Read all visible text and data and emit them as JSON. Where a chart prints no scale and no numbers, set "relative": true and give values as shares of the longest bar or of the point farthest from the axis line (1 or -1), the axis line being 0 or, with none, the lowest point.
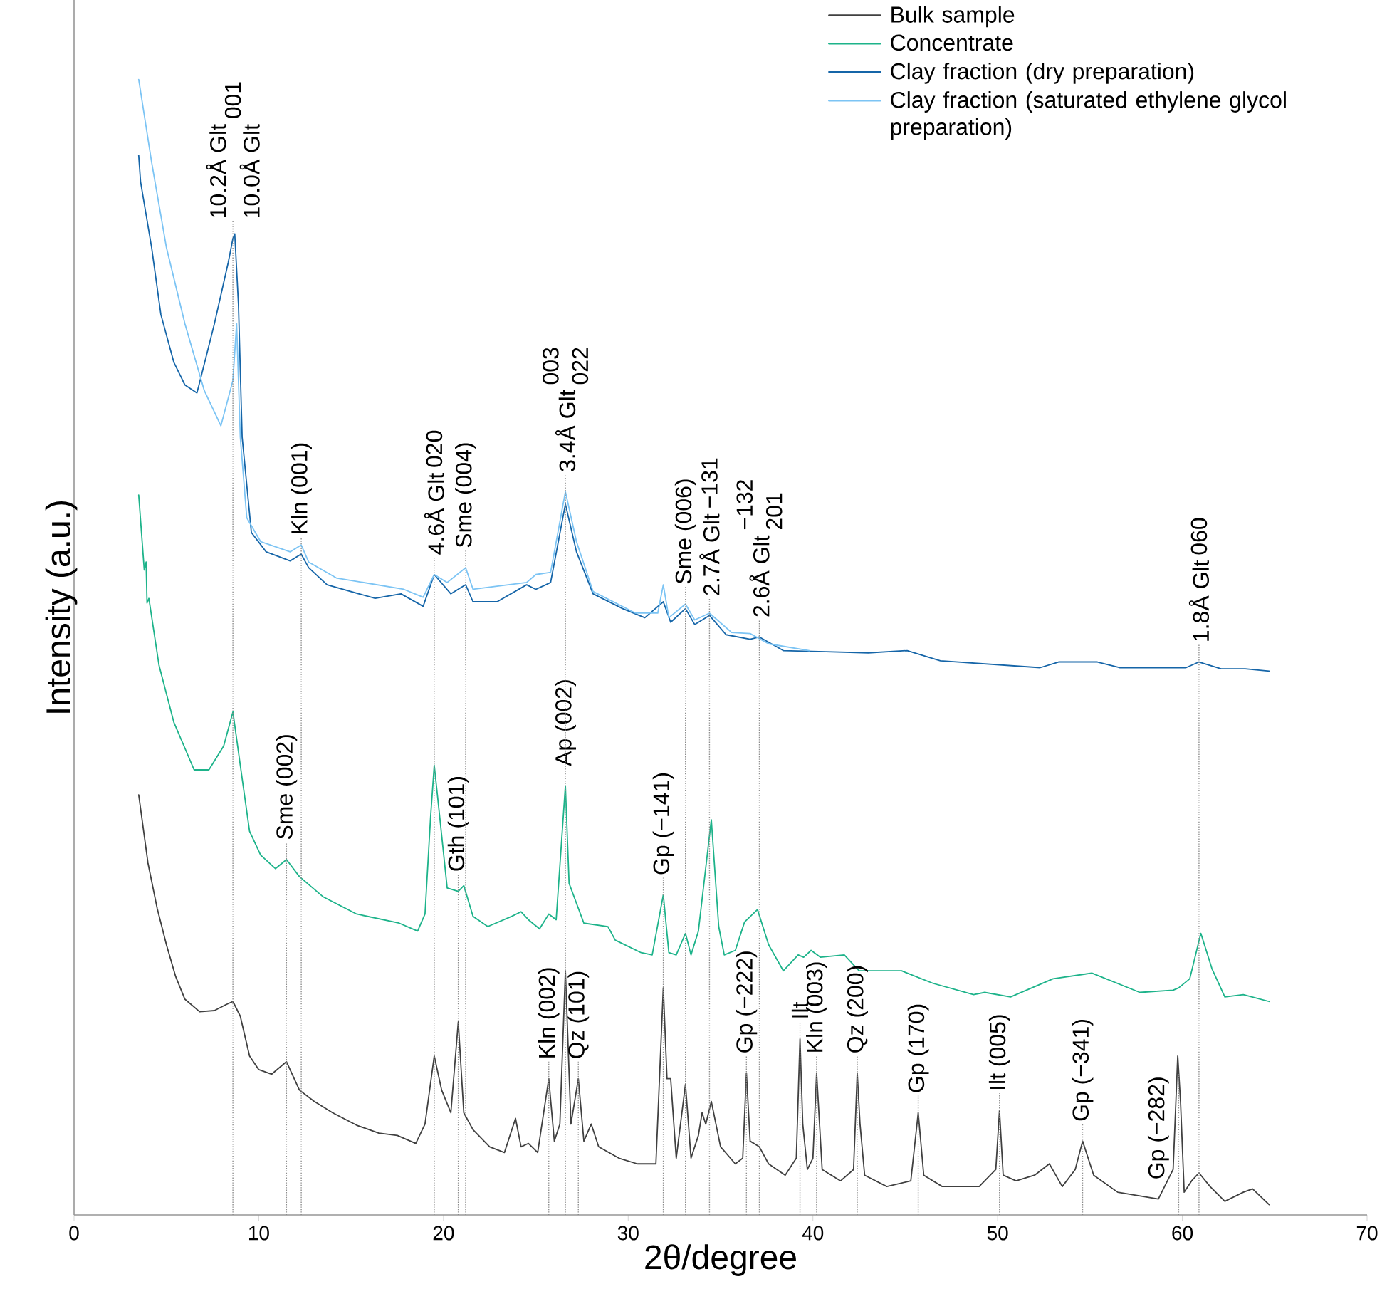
{
  "chart_data": {
    "type": "line",
    "relative": true,
    "xlabel": "2θ/degree",
    "ylabel": "Intensity (a.u.)",
    "xlim": [
      0,
      70
    ],
    "xticks": [
      0,
      10,
      20,
      30,
      40,
      50,
      60,
      70
    ],
    "legend": "top right",
    "series": [
      {
        "name": "Bulk sample",
        "color": "#404040",
        "x": [
          3.5,
          4.0,
          4.5,
          5.0,
          5.5,
          6.0,
          6.8,
          7.6,
          8.2,
          8.6,
          9.0,
          9.5,
          10.0,
          10.7,
          11.5,
          12.2,
          13.0,
          14.0,
          15.3,
          16.5,
          17.5,
          18.5,
          19.0,
          19.5,
          19.9,
          20.4,
          20.8,
          21.1,
          21.6,
          22.5,
          23.3,
          23.9,
          24.2,
          24.6,
          25.1,
          25.7,
          26.0,
          26.3,
          26.6,
          26.9,
          27.3,
          27.6,
          28.0,
          28.4,
          29.5,
          30.5,
          31.5,
          31.9,
          32.1,
          32.3,
          32.6,
          33.1,
          33.4,
          33.8,
          34.0,
          34.2,
          34.5,
          35.0,
          35.8,
          36.2,
          36.4,
          36.6,
          37.1,
          37.6,
          38.5,
          39.1,
          39.3,
          39.45,
          39.7,
          40.0,
          40.2,
          40.5,
          41.5,
          42.2,
          42.4,
          42.55,
          42.8,
          44.0,
          45.3,
          45.7,
          46.0,
          47.0,
          49.0,
          49.9,
          50.1,
          50.3,
          51.0,
          52.0,
          52.8,
          53.5,
          54.2,
          54.6,
          55.2,
          56.5,
          58.7,
          59.5,
          59.75,
          59.9,
          60.1,
          60.5,
          60.9,
          61.5,
          62.3,
          63.3,
          63.8,
          64.7
        ],
        "values": [
          0.37,
          0.31,
          0.27,
          0.238,
          0.21,
          0.19,
          0.179,
          0.18,
          0.185,
          0.188,
          0.175,
          0.14,
          0.128,
          0.124,
          0.135,
          0.11,
          0.1,
          0.09,
          0.079,
          0.072,
          0.07,
          0.063,
          0.08,
          0.14,
          0.11,
          0.09,
          0.17,
          0.09,
          0.075,
          0.06,
          0.055,
          0.085,
          0.06,
          0.063,
          0.055,
          0.12,
          0.065,
          0.08,
          0.215,
          0.08,
          0.12,
          0.065,
          0.08,
          0.06,
          0.05,
          0.045,
          0.045,
          0.2,
          0.12,
          0.12,
          0.05,
          0.115,
          0.05,
          0.07,
          0.09,
          0.08,
          0.1,
          0.06,
          0.045,
          0.05,
          0.125,
          0.065,
          0.06,
          0.045,
          0.035,
          0.05,
          0.155,
          0.08,
          0.04,
          0.05,
          0.125,
          0.04,
          0.03,
          0.04,
          0.125,
          0.08,
          0.035,
          0.025,
          0.03,
          0.09,
          0.035,
          0.025,
          0.025,
          0.04,
          0.092,
          0.035,
          0.03,
          0.035,
          0.045,
          0.025,
          0.04,
          0.065,
          0.035,
          0.02,
          0.014,
          0.04,
          0.14,
          0.1,
          0.02,
          0.03,
          0.037,
          0.025,
          0.012,
          0.02,
          0.023,
          0.009
        ]
      },
      {
        "name": "Concentrate",
        "color": "#1db38a",
        "x": [
          3.5,
          3.8,
          3.9,
          3.95,
          4.05,
          4.6,
          5.4,
          6.5,
          7.3,
          8.1,
          8.6,
          9.0,
          9.5,
          10.1,
          10.9,
          11.5,
          12.2,
          13.5,
          15.3,
          17.6,
          18.6,
          19.0,
          19.3,
          19.5,
          19.8,
          20.2,
          20.8,
          21.1,
          21.6,
          22.4,
          23.7,
          24.2,
          24.6,
          25.2,
          25.7,
          26.1,
          26.6,
          26.8,
          27.6,
          28.9,
          29.3,
          30.7,
          31.3,
          31.9,
          32.2,
          32.6,
          33.1,
          33.4,
          33.8,
          34.5,
          34.9,
          35.2,
          35.8,
          36.3,
          37.0,
          37.6,
          38.4,
          39.2,
          39.5,
          39.9,
          40.4,
          41.7,
          42.5,
          44.8,
          46.5,
          48.7,
          49.3,
          50.7,
          53.0,
          55.1,
          57.7,
          59.5,
          59.8,
          60.4,
          61.0,
          61.6,
          62.3,
          63.3,
          64.7
        ],
        "values": [
          0.634,
          0.568,
          0.575,
          0.539,
          0.543,
          0.484,
          0.434,
          0.392,
          0.392,
          0.413,
          0.443,
          0.396,
          0.338,
          0.317,
          0.305,
          0.313,
          0.298,
          0.28,
          0.265,
          0.257,
          0.25,
          0.265,
          0.35,
          0.396,
          0.35,
          0.288,
          0.285,
          0.29,
          0.263,
          0.254,
          0.263,
          0.267,
          0.26,
          0.252,
          0.265,
          0.26,
          0.378,
          0.292,
          0.257,
          0.254,
          0.242,
          0.231,
          0.229,
          0.282,
          0.231,
          0.229,
          0.248,
          0.229,
          0.25,
          0.348,
          0.254,
          0.229,
          0.233,
          0.258,
          0.269,
          0.238,
          0.215,
          0.229,
          0.227,
          0.233,
          0.227,
          0.229,
          0.215,
          0.215,
          0.204,
          0.194,
          0.196,
          0.192,
          0.208,
          0.213,
          0.196,
          0.198,
          0.2,
          0.208,
          0.248,
          0.217,
          0.192,
          0.194,
          0.188
        ]
      },
      {
        "name": "Clay fraction (dry preparation)",
        "color": "#1565a8",
        "x": [
          3.5,
          3.6,
          4.2,
          4.7,
          5.4,
          6.0,
          6.65,
          6.75,
          7.6,
          8.35,
          8.6,
          8.7,
          8.9,
          9.1,
          9.6,
          10.4,
          11.7,
          12.3,
          12.7,
          13.7,
          16.3,
          17.7,
          18.9,
          19.5,
          20.4,
          21.2,
          21.6,
          22.9,
          24.5,
          25.0,
          25.8,
          26.6,
          27.2,
          28.1,
          29.7,
          30.9,
          31.9,
          32.3,
          33.1,
          33.6,
          34.4,
          35.3,
          36.6,
          37.1,
          38.4,
          40.7,
          43.0,
          45.1,
          46.9,
          52.3,
          53.3,
          55.4,
          56.6,
          60.2,
          60.9,
          62.1,
          63.4,
          64.7
        ],
        "values": [
          0.933,
          0.91,
          0.852,
          0.793,
          0.751,
          0.731,
          0.724,
          0.73,
          0.785,
          0.839,
          0.86,
          0.864,
          0.802,
          0.685,
          0.601,
          0.584,
          0.576,
          0.582,
          0.57,
          0.555,
          0.543,
          0.547,
          0.536,
          0.564,
          0.547,
          0.555,
          0.54,
          0.54,
          0.555,
          0.551,
          0.557,
          0.626,
          0.584,
          0.547,
          0.534,
          0.526,
          0.54,
          0.522,
          0.534,
          0.52,
          0.528,
          0.511,
          0.507,
          0.509,
          0.497,
          0.496,
          0.495,
          0.497,
          0.488,
          0.482,
          0.487,
          0.487,
          0.482,
          0.482,
          0.487,
          0.481,
          0.481,
          0.479
        ]
      },
      {
        "name": "Clay fraction (saturated ethylene glycol preparation)",
        "color": "#7cc4f4",
        "x": [
          3.5,
          4.2,
          5.0,
          6.0,
          7.05,
          7.95,
          8.6,
          8.8,
          9.0,
          9.35,
          10.1,
          11.7,
          12.3,
          12.7,
          14.2,
          17.85,
          18.9,
          19.5,
          20.2,
          21.2,
          21.6,
          24.5,
          25.0,
          25.8,
          26.6,
          27.2,
          28.1,
          30.4,
          31.6,
          31.9,
          32.2,
          33.1,
          33.6,
          34.4,
          35.6,
          36.6,
          37.6,
          39.8
        ],
        "values": [
          1.0,
          0.927,
          0.852,
          0.785,
          0.726,
          0.695,
          0.735,
          0.785,
          0.685,
          0.614,
          0.593,
          0.584,
          0.59,
          0.575,
          0.561,
          0.551,
          0.544,
          0.564,
          0.557,
          0.57,
          0.551,
          0.557,
          0.564,
          0.566,
          0.637,
          0.593,
          0.549,
          0.53,
          0.53,
          0.555,
          0.526,
          0.538,
          0.524,
          0.53,
          0.513,
          0.512,
          0.503,
          0.497
        ]
      }
    ],
    "annotations": [
      {
        "text": "10.2Å Glt",
        "x": 8.6,
        "y": 0.86
      },
      {
        "text": "10.0Å Glt",
        "x": 8.6,
        "y": 0.86
      },
      "001",
      {
        "text": "Sme (002)",
        "x": 11.5,
        "y": 0.313
      },
      {
        "text": "Kln (001)",
        "x": 12.3,
        "y": 0.582
      },
      {
        "text": "4.6Å Glt",
        "x": 19.5,
        "y": 0.564
      },
      "020",
      {
        "text": "Gth (101)",
        "x": 20.8,
        "y": 0.285
      },
      {
        "text": "Sme (004)",
        "x": 21.2,
        "y": 0.57
      },
      {
        "text": "Kln (002)",
        "x": 25.7,
        "y": 0.12
      },
      {
        "text": "Ap (002)",
        "x": 26.6,
        "y": 0.378
      },
      {
        "text": "3.4Å Glt",
        "x": 26.6,
        "y": 0.637
      },
      "003",
      "022",
      {
        "text": "Qz (101)",
        "x": 27.3,
        "y": 0.12
      },
      {
        "text": "Gp (−141)",
        "x": 31.9,
        "y": 0.282
      },
      {
        "text": "Sme (006)",
        "x": 33.1,
        "y": 0.538
      },
      {
        "text": "2.7Å Glt",
        "x": 34.4,
        "y": 0.528
      },
      "−131",
      {
        "text": "Gp (−222)",
        "x": 36.4,
        "y": 0.125
      },
      {
        "text": "2.6Å Glt",
        "x": 37.1,
        "y": 0.509
      },
      "−132",
      "201",
      {
        "text": "Ilt",
        "x": 39.3,
        "y": 0.155
      },
      {
        "text": "Kln (003)",
        "x": 40.2,
        "y": 0.125
      },
      {
        "text": "Qz (200)",
        "x": 42.4,
        "y": 0.125
      },
      {
        "text": "Gp (170)",
        "x": 45.7,
        "y": 0.09
      },
      {
        "text": "Ilt (005)",
        "x": 50.1,
        "y": 0.092
      },
      {
        "text": "Gp (−341)",
        "x": 54.6,
        "y": 0.065
      },
      {
        "text": "Gp (−282)",
        "x": 58.7,
        "y": 0.014
      },
      {
        "text": "1.8Å Glt",
        "x": 60.9,
        "y": 0.487
      },
      "060"
    ],
    "ref_lines": [
      {
        "axis": "x",
        "value": 8.6,
        "color": "#8c8c8c",
        "line_style": "dotted"
      },
      {
        "axis": "x",
        "value": 11.5,
        "color": "#8c8c8c",
        "line_style": "dotted"
      },
      {
        "axis": "x",
        "value": 12.3,
        "color": "#8c8c8c",
        "line_style": "dotted"
      },
      {
        "axis": "x",
        "value": 19.5,
        "color": "#8c8c8c",
        "line_style": "dotted"
      },
      {
        "axis": "x",
        "value": 20.8,
        "color": "#8c8c8c",
        "line_style": "dotted"
      },
      {
        "axis": "x",
        "value": 21.2,
        "color": "#8c8c8c",
        "line_style": "dotted"
      },
      {
        "axis": "x",
        "value": 25.7,
        "color": "#8c8c8c",
        "line_style": "dotted"
      },
      {
        "axis": "x",
        "value": 26.6,
        "color": "#8c8c8c",
        "line_style": "dotted"
      },
      {
        "axis": "x",
        "value": 27.3,
        "color": "#8c8c8c",
        "line_style": "dotted"
      },
      {
        "axis": "x",
        "value": 31.9,
        "color": "#8c8c8c",
        "line_style": "dotted"
      },
      {
        "axis": "x",
        "value": 33.1,
        "color": "#8c8c8c",
        "line_style": "dotted"
      },
      {
        "axis": "x",
        "value": 34.4,
        "color": "#8c8c8c",
        "line_style": "dotted"
      },
      {
        "axis": "x",
        "value": 36.4,
        "color": "#8c8c8c",
        "line_style": "dotted"
      },
      {
        "axis": "x",
        "value": 37.1,
        "color": "#8c8c8c",
        "line_style": "dotted"
      },
      {
        "axis": "x",
        "value": 39.3,
        "color": "#8c8c8c",
        "line_style": "dotted"
      },
      {
        "axis": "x",
        "value": 40.2,
        "color": "#8c8c8c",
        "line_style": "dotted"
      },
      {
        "axis": "x",
        "value": 42.4,
        "color": "#8c8c8c",
        "line_style": "dotted"
      },
      {
        "axis": "x",
        "value": 45.7,
        "color": "#8c8c8c",
        "line_style": "dotted"
      },
      {
        "axis": "x",
        "value": 50.1,
        "color": "#8c8c8c",
        "line_style": "dotted"
      },
      {
        "axis": "x",
        "value": 54.6,
        "color": "#8c8c8c",
        "line_style": "dotted"
      },
      {
        "axis": "x",
        "value": 59.8,
        "color": "#8c8c8c",
        "line_style": "dotted"
      },
      {
        "axis": "x",
        "value": 60.9,
        "color": "#8c8c8c",
        "line_style": "dotted"
      }
    ]
  }
}
